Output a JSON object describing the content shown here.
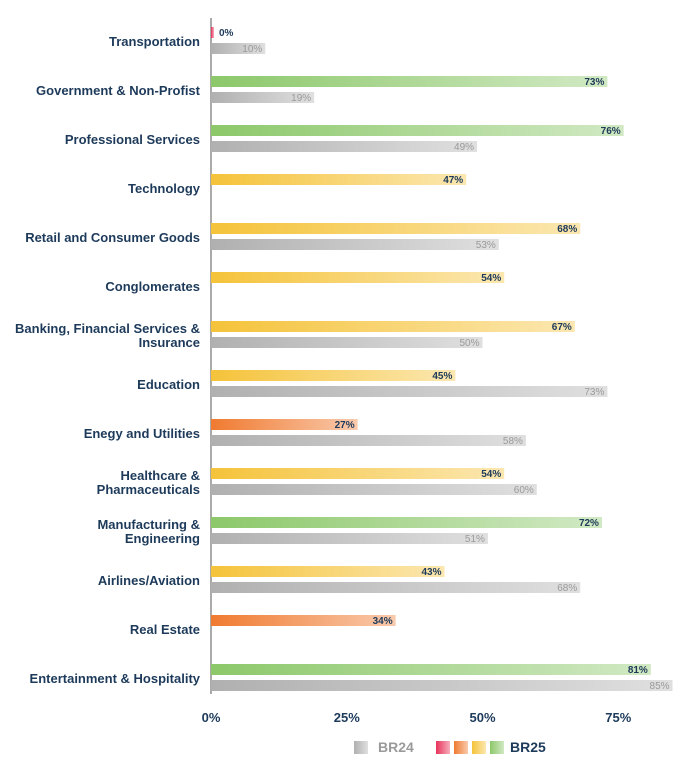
{
  "chart_data": {
    "type": "bar",
    "orientation": "horizontal",
    "categories": [
      "Transportation",
      "Government & Non-Profist",
      "Professional Services",
      "Technology",
      "Retail and Consumer Goods",
      "Conglomerates",
      "Banking, Financial Services & Insurance",
      "Education",
      "Enegy and Utilities",
      "Healthcare & Pharmaceuticals",
      "Manufacturing & Engineering",
      "Airlines/Aviation",
      "Real Estate",
      "Entertainment & Hospitality"
    ],
    "category_lines": [
      [
        "Transportation"
      ],
      [
        "Government & Non-Profist"
      ],
      [
        "Professional Services"
      ],
      [
        "Technology"
      ],
      [
        "Retail and Consumer Goods"
      ],
      [
        "Conglomerates"
      ],
      [
        "Banking, Financial Services &",
        "Insurance"
      ],
      [
        "Education"
      ],
      [
        "Enegy and Utilities"
      ],
      [
        "Healthcare &",
        "Pharmaceuticals"
      ],
      [
        "Manufacturing &",
        "Engineering"
      ],
      [
        "Airlines/Aviation"
      ],
      [
        "Real Estate"
      ],
      [
        "Entertainment & Hospitality"
      ]
    ],
    "series": [
      {
        "name": "BR25",
        "values": [
          0,
          73,
          76,
          47,
          68,
          54,
          67,
          45,
          27,
          54,
          72,
          43,
          34,
          81
        ]
      },
      {
        "name": "BR24",
        "values": [
          10,
          19,
          49,
          null,
          53,
          null,
          50,
          73,
          58,
          60,
          51,
          68,
          null,
          85
        ]
      }
    ],
    "xlim": [
      0,
      85
    ],
    "x_ticks": [
      0,
      25,
      50,
      75
    ],
    "x_tick_labels": [
      "0%",
      "25%",
      "50%",
      "75%"
    ],
    "grid": false,
    "legend_position": "bottom",
    "legend": {
      "br24": "BR24",
      "br25": "BR25"
    },
    "colors": {
      "br24": "#c4c4c4",
      "red": "#e8335a",
      "orange": "#f07a30",
      "yellow": "#f5c33a",
      "green": "#8cc86a",
      "label": "#1d3a5a"
    }
  }
}
